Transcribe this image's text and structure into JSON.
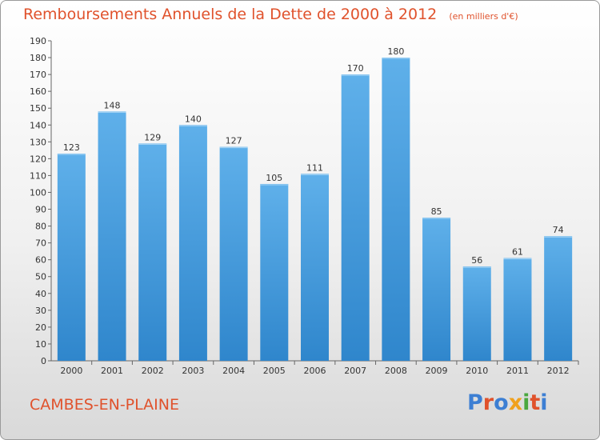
{
  "header": {
    "title": "Remboursements Annuels de la Dette de 2000 à 2012",
    "unit": "(en milliers d'€)"
  },
  "footer": {
    "commune": "CAMBES-EN-PLAINE",
    "logo": "Proxiti",
    "logo_colors": [
      "#3d7fd3",
      "#e0522c",
      "#3d7fd3",
      "#f0a11d",
      "#4aa83f",
      "#e0522c",
      "#3d7fd3"
    ]
  },
  "colors": {
    "title": "#e0522c",
    "bar_light": "#5fb0ea",
    "bar_dark": "#2f86cc"
  },
  "chart_data": {
    "type": "bar",
    "categories": [
      "2000",
      "2001",
      "2002",
      "2003",
      "2004",
      "2005",
      "2006",
      "2007",
      "2008",
      "2009",
      "2010",
      "2011",
      "2012"
    ],
    "values": [
      123,
      148,
      129,
      140,
      127,
      105,
      111,
      170,
      180,
      85,
      56,
      61,
      74
    ],
    "ylim": [
      0,
      190
    ],
    "yticks": [
      0,
      10,
      20,
      30,
      40,
      50,
      60,
      70,
      80,
      90,
      100,
      110,
      120,
      130,
      140,
      150,
      160,
      170,
      180,
      190
    ],
    "grid": false,
    "data_labels": true
  }
}
